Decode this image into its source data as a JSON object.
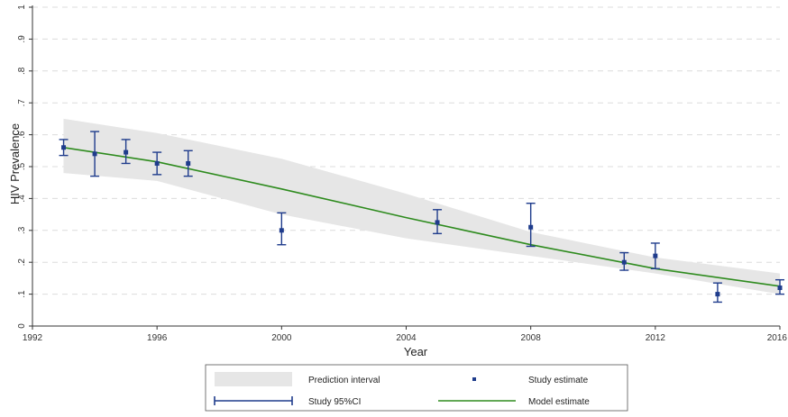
{
  "chart_data": {
    "type": "line",
    "title": "",
    "xlabel": "Year",
    "ylabel": "HIV Prevalence",
    "xlim": [
      1992,
      2016
    ],
    "ylim": [
      0,
      1
    ],
    "x_ticks": [
      {
        "value": 1992,
        "label": "1992"
      },
      {
        "value": 1996,
        "label": "1996"
      },
      {
        "value": 2000,
        "label": "2000"
      },
      {
        "value": 2004,
        "label": "2004"
      },
      {
        "value": 2008,
        "label": "2008"
      },
      {
        "value": 2012,
        "label": "2012"
      },
      {
        "value": 2016,
        "label": "2016"
      }
    ],
    "y_ticks": [
      {
        "value": 0,
        "label": "0"
      },
      {
        "value": 0.1,
        "label": ".1"
      },
      {
        "value": 0.2,
        "label": ".2"
      },
      {
        "value": 0.3,
        "label": ".3"
      },
      {
        "value": 0.4,
        "label": ".4"
      },
      {
        "value": 0.5,
        "label": ".5"
      },
      {
        "value": 0.6,
        "label": ".6"
      },
      {
        "value": 0.7,
        "label": ".7"
      },
      {
        "value": 0.8,
        "label": ".8"
      },
      {
        "value": 0.9,
        "label": ".9"
      },
      {
        "value": 1,
        "label": "1"
      }
    ],
    "grid": "horizontal dashed",
    "legend_placement": "bottom",
    "series": [
      {
        "name": "Prediction interval",
        "kind": "band",
        "color": "#e6e6e6",
        "x": [
          1993,
          1996,
          2000,
          2004,
          2008,
          2012,
          2016
        ],
        "lower": [
          0.48,
          0.455,
          0.35,
          0.275,
          0.22,
          0.165,
          0.1
        ],
        "upper": [
          0.65,
          0.605,
          0.525,
          0.415,
          0.295,
          0.215,
          0.165
        ]
      },
      {
        "name": "Model estimate",
        "kind": "line",
        "color": "#2e8b1e",
        "x": [
          1993,
          1996,
          2000,
          2004,
          2008,
          2012,
          2016
        ],
        "y": [
          0.56,
          0.515,
          0.43,
          0.34,
          0.255,
          0.18,
          0.125
        ]
      },
      {
        "name": "Study estimate",
        "kind": "errorbar",
        "color": "#1f3c8c",
        "points": [
          {
            "x": 1993,
            "y": 0.56,
            "lo": 0.535,
            "hi": 0.585
          },
          {
            "x": 1994,
            "y": 0.54,
            "lo": 0.47,
            "hi": 0.61
          },
          {
            "x": 1995,
            "y": 0.545,
            "lo": 0.51,
            "hi": 0.585
          },
          {
            "x": 1996,
            "y": 0.51,
            "lo": 0.475,
            "hi": 0.545
          },
          {
            "x": 1997,
            "y": 0.51,
            "lo": 0.47,
            "hi": 0.55
          },
          {
            "x": 2000,
            "y": 0.3,
            "lo": 0.255,
            "hi": 0.355
          },
          {
            "x": 2005,
            "y": 0.325,
            "lo": 0.29,
            "hi": 0.365
          },
          {
            "x": 2008,
            "y": 0.31,
            "lo": 0.25,
            "hi": 0.385
          },
          {
            "x": 2011,
            "y": 0.2,
            "lo": 0.175,
            "hi": 0.23
          },
          {
            "x": 2012,
            "y": 0.22,
            "lo": 0.18,
            "hi": 0.26
          },
          {
            "x": 2014,
            "y": 0.1,
            "lo": 0.075,
            "hi": 0.135
          },
          {
            "x": 2016,
            "y": 0.12,
            "lo": 0.1,
            "hi": 0.145
          }
        ]
      }
    ]
  },
  "legend": {
    "prediction_interval": "Prediction interval",
    "study_estimate": "Study estimate",
    "study_ci": "Study 95%CI",
    "model_estimate": "Model estimate"
  },
  "colors": {
    "band": "#e6e6e6",
    "model": "#2e8b1e",
    "study": "#1f3c8c",
    "grid": "#dcdcdc",
    "axis": "#333333"
  }
}
